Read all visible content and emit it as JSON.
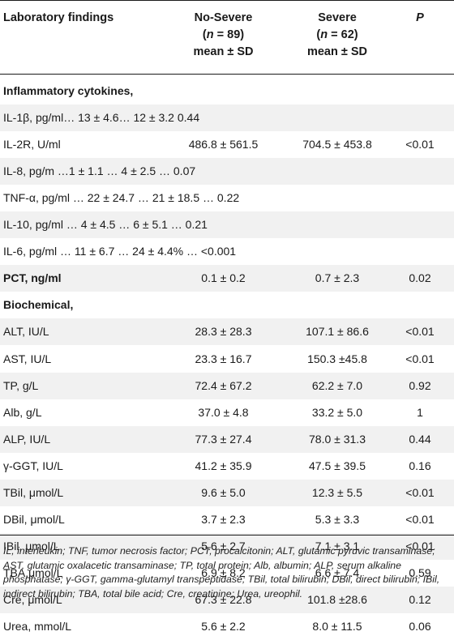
{
  "header": {
    "col0": "Laboratory findings",
    "col1_line1": "No-Severe",
    "col1_line2": "(n = 89)",
    "col1_line3": "mean ± SD",
    "col2_line1": "Severe",
    "col2_line2": "(n = 62)",
    "col2_line3": "mean ± SD",
    "col3": "P"
  },
  "rows": [
    {
      "label": "Inflammatory cytokines,",
      "no_severe": "",
      "severe": "",
      "p": "",
      "bold": true,
      "shade": false
    },
    {
      "label": "IL-1β, pg/ml… 13 ± 4.6… 12 ± 3.2 0.44",
      "no_severe": "",
      "severe": "",
      "p": "",
      "bold": false,
      "shade": true
    },
    {
      "label": "IL-2R, U/ml",
      "no_severe": "486.8 ± 561.5",
      "severe": "704.5 ± 453.8",
      "p": "<0.01",
      "bold": false,
      "shade": false
    },
    {
      "label": "IL-8, pg/m …1 ± 1.1 … 4 ± 2.5 … 0.07",
      "no_severe": "",
      "severe": "",
      "p": "",
      "bold": false,
      "shade": true
    },
    {
      "label": "TNF-α, pg/ml … 22 ± 24.7 … 21 ± 18.5 … 0.22",
      "no_severe": "",
      "severe": "",
      "p": "",
      "bold": false,
      "shade": false
    },
    {
      "label": "IL-10, pg/ml … 4 ± 4.5 … 6 ± 5.1 … 0.21",
      "no_severe": "",
      "severe": "",
      "p": "",
      "bold": false,
      "shade": true
    },
    {
      "label": "IL-6, pg/ml … 11 ± 6.7 … 24 ± 4.4% … <0.001",
      "no_severe": "",
      "severe": "",
      "p": "",
      "bold": false,
      "shade": false
    },
    {
      "label": "PCT, ng/ml",
      "no_severe": "0.1 ± 0.2",
      "severe": "0.7 ± 2.3",
      "p": "0.02",
      "bold": true,
      "shade": true
    },
    {
      "label": "Biochemical,",
      "no_severe": "",
      "severe": "",
      "p": "",
      "bold": true,
      "shade": false
    },
    {
      "label": "ALT, IU/L",
      "no_severe": "28.3 ± 28.3",
      "severe": "107.1 ± 86.6",
      "p": "<0.01",
      "bold": false,
      "shade": true
    },
    {
      "label": "AST, IU/L",
      "no_severe": "23.3 ± 16.7",
      "severe": "150.3 ±45.8",
      "p": "<0.01",
      "bold": false,
      "shade": false
    },
    {
      "label": "TP, g/L",
      "no_severe": "72.4 ± 67.2",
      "severe": "62.2 ± 7.0",
      "p": "0.92",
      "bold": false,
      "shade": true
    },
    {
      "label": "Alb, g/L",
      "no_severe": "37.0 ± 4.8",
      "severe": "33.2 ± 5.0",
      "p": "1",
      "bold": false,
      "shade": false
    },
    {
      "label": "ALP, IU/L",
      "no_severe": "77.3 ± 27.4",
      "severe": "78.0 ± 31.3",
      "p": "0.44",
      "bold": false,
      "shade": true
    },
    {
      "label": "γ-GGT, IU/L",
      "no_severe": "41.2 ± 35.9",
      "severe": "47.5 ± 39.5",
      "p": "0.16",
      "bold": false,
      "shade": false
    },
    {
      "label": "TBil, μmol/L",
      "no_severe": "9.6 ± 5.0",
      "severe": "12.3 ± 5.5",
      "p": "<0.01",
      "bold": false,
      "shade": true
    },
    {
      "label": "DBil, μmol/L",
      "no_severe": "3.7 ± 2.3",
      "severe": "5.3 ± 3.3",
      "p": "<0.01",
      "bold": false,
      "shade": false
    },
    {
      "label": "IBil, μmol/L",
      "no_severe": "5.6 ± 2.7",
      "severe": "7.1 ± 3.1",
      "p": "<0.01",
      "bold": false,
      "shade": true
    },
    {
      "label": "TBA,μmol/L",
      "no_severe": "6.9 ± 8.2",
      "severe": "6.6 ± 7.4",
      "p": "0.59",
      "bold": false,
      "shade": false
    },
    {
      "label": "Cre, μmol/L",
      "no_severe": "67.3 ± 22.8",
      "severe": "101.8 ±28.6",
      "p": "0.12",
      "bold": false,
      "shade": true
    },
    {
      "label": "Urea, mmol/L",
      "no_severe": "5.6 ± 2.2",
      "severe": "8.0 ± 11.5",
      "p": "0.06",
      "bold": false,
      "shade": false
    }
  ],
  "footnote": "IL, interleukin; TNF, tumor necrosis factor; PCT, procalcitonin; ALT, glutamic pyruvic transaminase; AST, glutamic oxalacetic transaminase; TP, total protein; Alb, albumin; ALP, serum alkaline phosphatase; γ-GGT, gamma-glutamyl transpeptidase; TBil, total bilirubin; DBil, direct bilirubin; IBil, indirect bilirubin; TBA, total bile acid; Cre, creatinine; Urea, ureophil."
}
